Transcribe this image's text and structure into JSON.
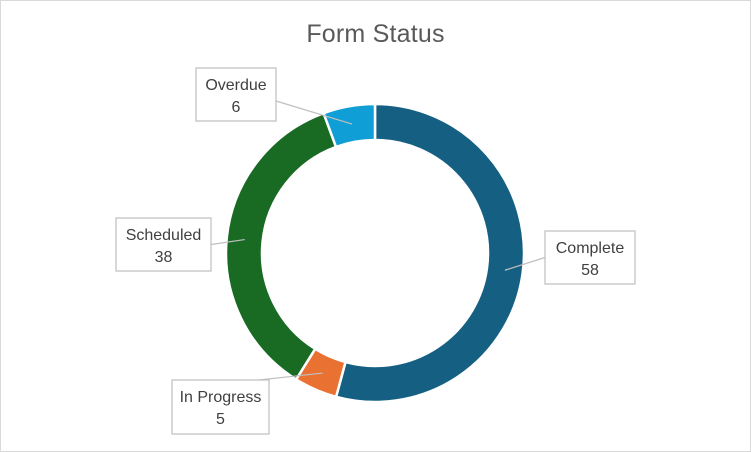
{
  "chart_data": {
    "type": "pie",
    "subtype": "donut",
    "title": "Form Status",
    "categories": [
      "Complete",
      "In Progress",
      "Scheduled",
      "Overdue"
    ],
    "values": [
      58,
      5,
      38,
      6
    ],
    "colors": [
      "#156082",
      "#E97132",
      "#196B24",
      "#0F9ED5"
    ],
    "data_labels": [
      "58",
      "5",
      "38",
      "6"
    ],
    "start_angle_deg": 0,
    "legend": "none",
    "label_style": "callout"
  }
}
